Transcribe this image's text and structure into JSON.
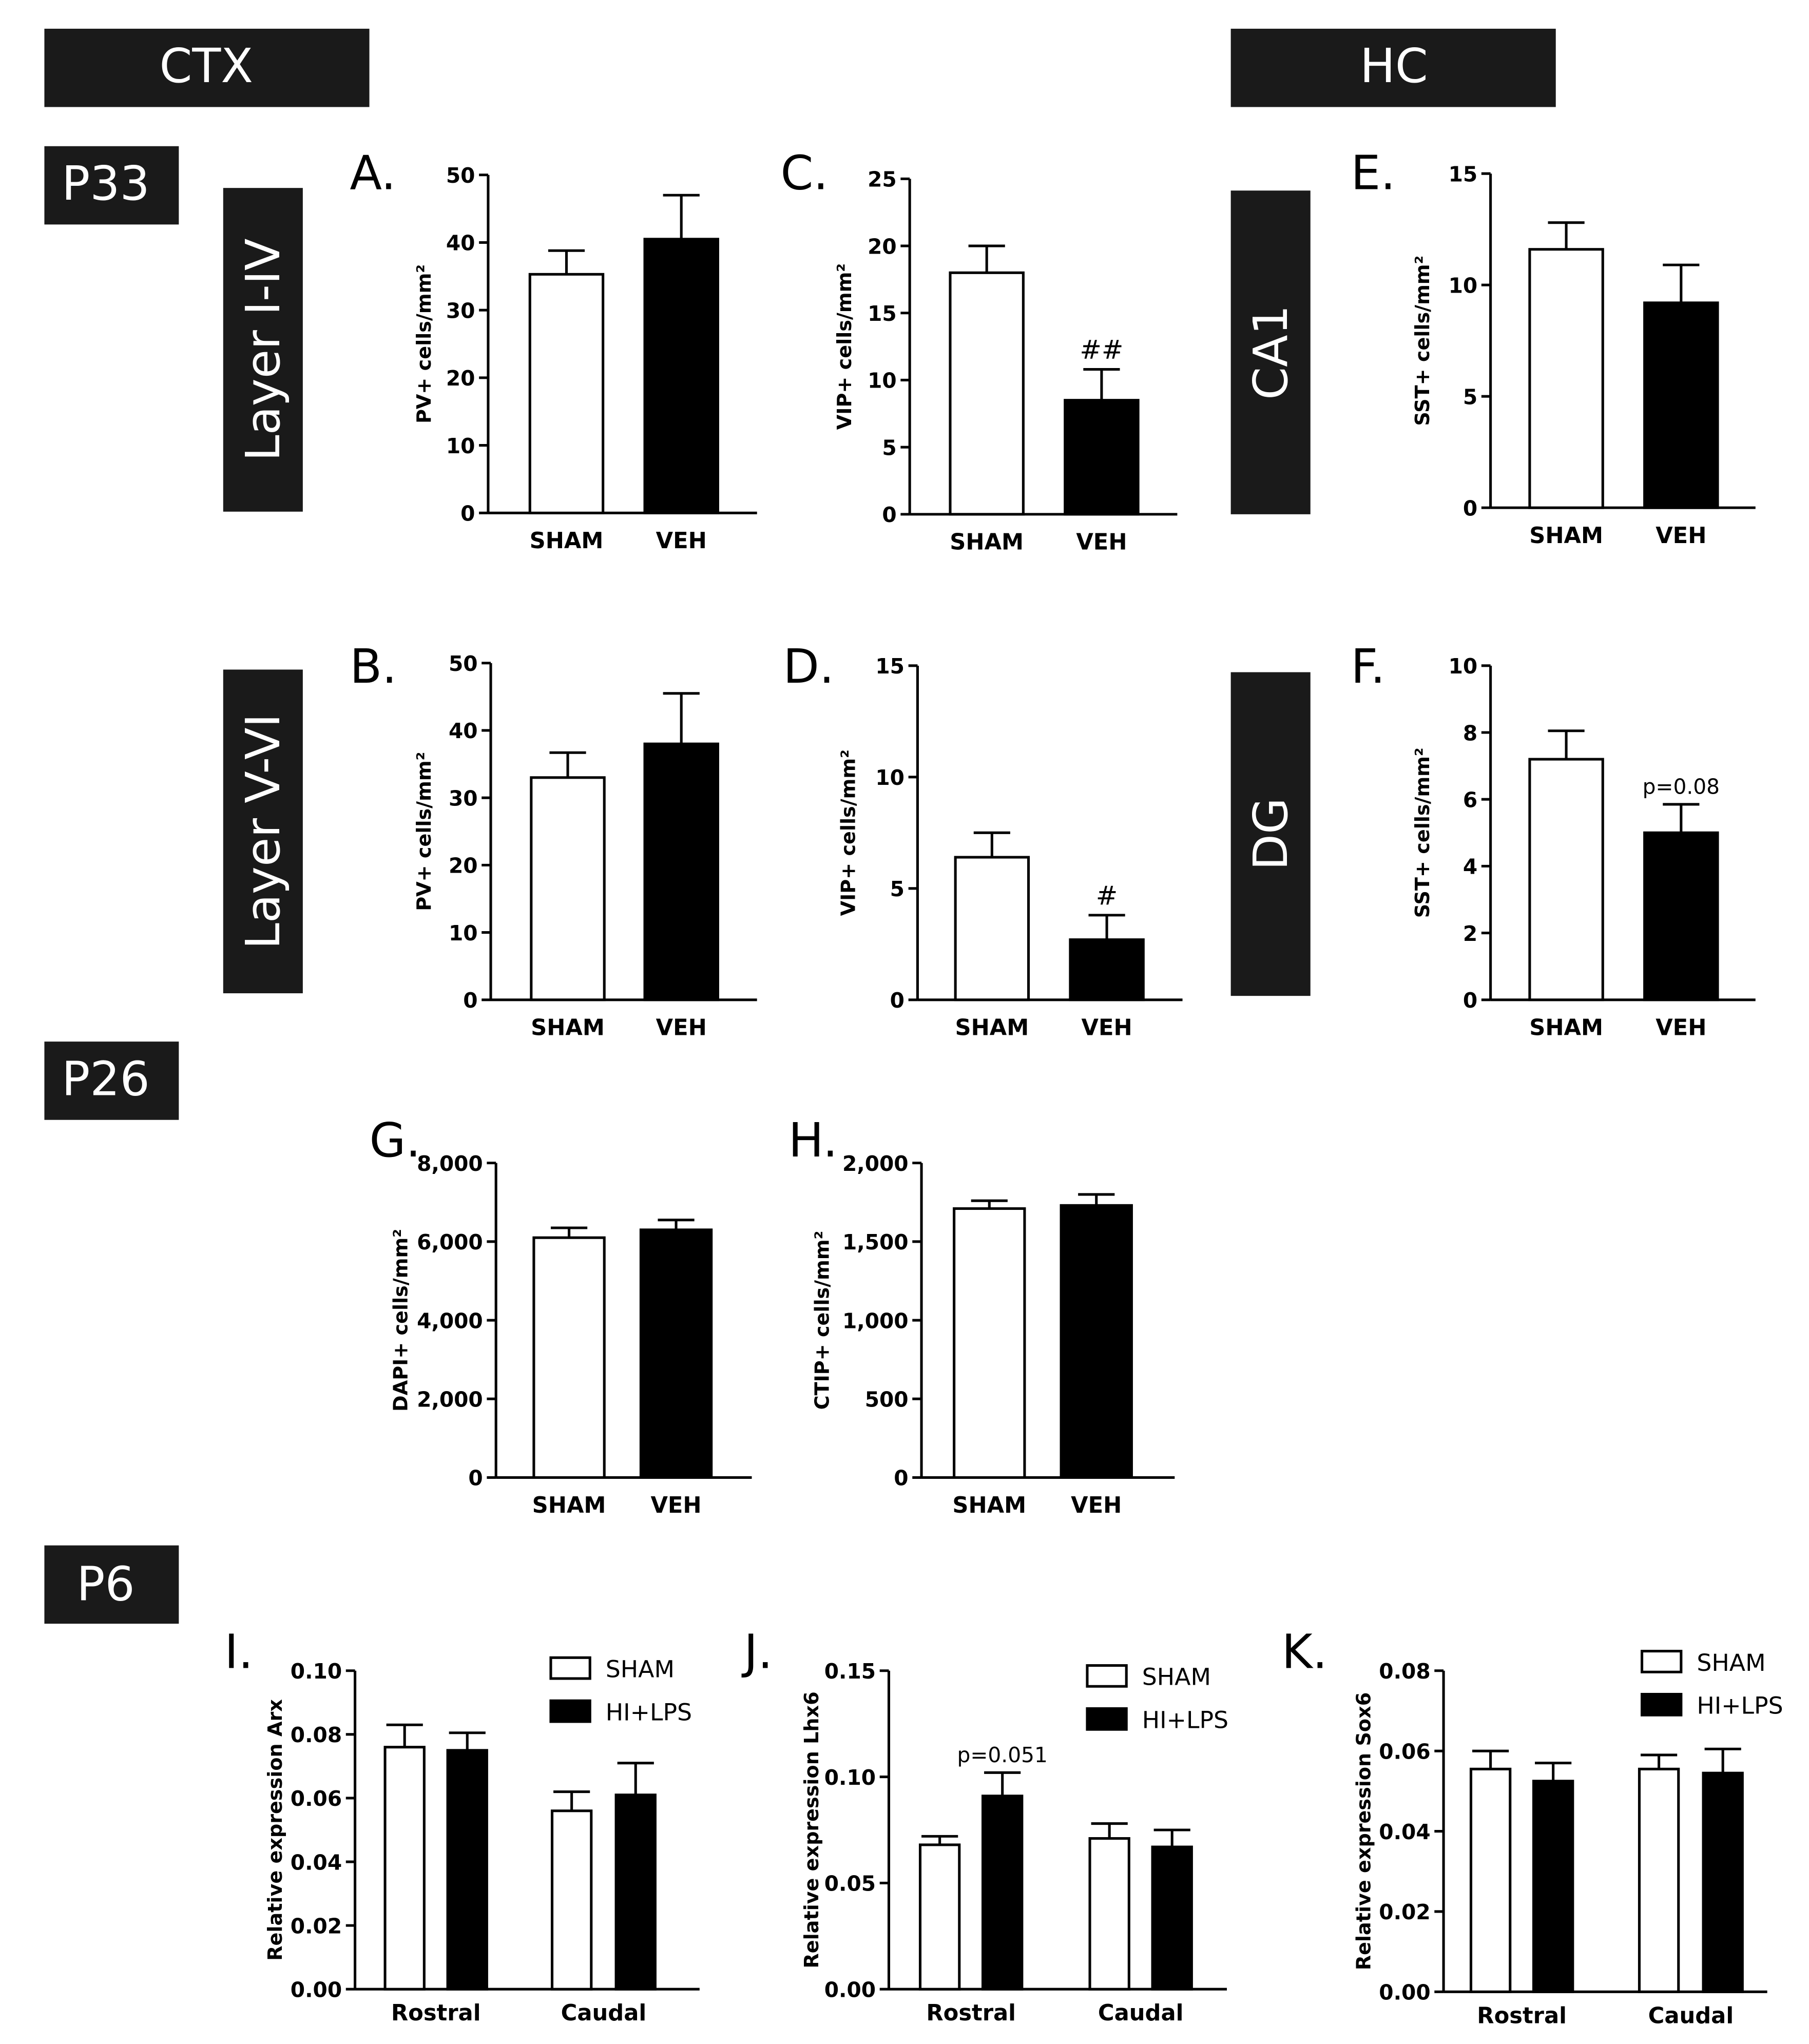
{
  "headers": {
    "ctx": "CTX",
    "hc": "HC",
    "p33": "P33",
    "p26": "P26",
    "p6": "P6",
    "layer1": "Layer I-IV",
    "layer2": "Layer V-VI",
    "ca1": "CA1",
    "dg": "DG"
  },
  "colors": {
    "open_bar": "#ffffff",
    "filled_bar": "#000000",
    "header_bg": "#1a1a1a"
  },
  "chart_data": [
    {
      "panel": "A.",
      "type": "bar",
      "ylabel": "PV+ cells/mm²",
      "categories": [
        "SHAM",
        "VEH"
      ],
      "values": [
        35.3,
        40.5
      ],
      "errors": [
        3.5,
        6.5
      ],
      "fills": [
        "open",
        "filled"
      ],
      "ylim": [
        0,
        50
      ],
      "yticks": [
        0,
        10,
        20,
        30,
        40,
        50
      ],
      "ytick_labels": [
        "0",
        "10",
        "20",
        "30",
        "40",
        "50"
      ],
      "annotations": [
        "",
        ""
      ]
    },
    {
      "panel": "C.",
      "type": "bar",
      "ylabel": "VIP+ cells/mm²",
      "categories": [
        "SHAM",
        "VEH"
      ],
      "values": [
        18.0,
        8.5
      ],
      "errors": [
        2.0,
        2.3
      ],
      "fills": [
        "open",
        "filled"
      ],
      "ylim": [
        0,
        25
      ],
      "yticks": [
        0,
        5,
        10,
        15,
        20,
        25
      ],
      "ytick_labels": [
        "0",
        "5",
        "10",
        "15",
        "20",
        "25"
      ],
      "annotations": [
        "",
        "##"
      ]
    },
    {
      "panel": "E.",
      "type": "bar",
      "ylabel": "SST+ cells/mm²",
      "categories": [
        "SHAM",
        "VEH"
      ],
      "values": [
        11.6,
        9.2
      ],
      "errors": [
        1.2,
        1.7
      ],
      "fills": [
        "open",
        "filled"
      ],
      "ylim": [
        0,
        15
      ],
      "yticks": [
        0,
        5,
        10,
        15
      ],
      "ytick_labels": [
        "0",
        "5",
        "10",
        "15"
      ],
      "annotations": [
        "",
        ""
      ]
    },
    {
      "panel": "B.",
      "type": "bar",
      "ylabel": "PV+ cells/mm²",
      "categories": [
        "SHAM",
        "VEH"
      ],
      "values": [
        33.0,
        38.0
      ],
      "errors": [
        3.7,
        7.5
      ],
      "fills": [
        "open",
        "filled"
      ],
      "ylim": [
        0,
        50
      ],
      "yticks": [
        0,
        10,
        20,
        30,
        40,
        50
      ],
      "ytick_labels": [
        "0",
        "10",
        "20",
        "30",
        "40",
        "50"
      ],
      "annotations": [
        "",
        ""
      ]
    },
    {
      "panel": "D.",
      "type": "bar",
      "ylabel": "VIP+ cells/mm²",
      "categories": [
        "SHAM",
        "VEH"
      ],
      "values": [
        6.4,
        2.7
      ],
      "errors": [
        1.1,
        1.1
      ],
      "fills": [
        "open",
        "filled"
      ],
      "ylim": [
        0,
        15
      ],
      "yticks": [
        0,
        5,
        10,
        15
      ],
      "ytick_labels": [
        "0",
        "5",
        "10",
        "15"
      ],
      "annotations": [
        "",
        "#"
      ]
    },
    {
      "panel": "F.",
      "type": "bar",
      "ylabel": "SST+ cells/mm²",
      "categories": [
        "SHAM",
        "VEH"
      ],
      "values": [
        7.2,
        5.0
      ],
      "errors": [
        0.85,
        0.85
      ],
      "fills": [
        "open",
        "filled"
      ],
      "ylim": [
        0,
        10
      ],
      "yticks": [
        0,
        2,
        4,
        6,
        8,
        10
      ],
      "ytick_labels": [
        "0",
        "2",
        "4",
        "6",
        "8",
        "10"
      ],
      "annotations": [
        "",
        "p=0.08"
      ]
    },
    {
      "panel": "G.",
      "type": "bar",
      "ylabel": "DAPI+ cells/mm²",
      "categories": [
        "SHAM",
        "VEH"
      ],
      "values": [
        6100,
        6300
      ],
      "errors": [
        250,
        250
      ],
      "fills": [
        "open",
        "filled"
      ],
      "ylim": [
        0,
        8000
      ],
      "yticks": [
        0,
        2000,
        4000,
        6000,
        8000
      ],
      "ytick_labels": [
        "0",
        "2,000",
        "4,000",
        "6,000",
        "8,000"
      ],
      "annotations": [
        "",
        ""
      ]
    },
    {
      "panel": "H.",
      "type": "bar",
      "ylabel": "CTIP+ cells/mm²",
      "categories": [
        "SHAM",
        "VEH"
      ],
      "values": [
        1710,
        1730
      ],
      "errors": [
        50,
        70
      ],
      "fills": [
        "open",
        "filled"
      ],
      "ylim": [
        0,
        2000
      ],
      "yticks": [
        0,
        500,
        1000,
        1500,
        2000
      ],
      "ytick_labels": [
        "0",
        "500",
        "1,000",
        "1,500",
        "2,000"
      ],
      "annotations": [
        "",
        ""
      ]
    },
    {
      "panel": "I.",
      "type": "bar",
      "ylabel": "Relative expression Arx",
      "categories": [
        "Rostral",
        "Caudal"
      ],
      "series": [
        {
          "name": "SHAM",
          "values": [
            0.076,
            0.056
          ],
          "errors": [
            0.007,
            0.006
          ]
        },
        {
          "name": "HI+LPS",
          "values": [
            0.075,
            0.061
          ],
          "errors": [
            0.0055,
            0.01
          ]
        }
      ],
      "annotations": [
        "",
        "",
        "",
        ""
      ],
      "ylim": [
        0,
        0.1
      ],
      "yticks": [
        0,
        0.02,
        0.04,
        0.06,
        0.08,
        0.1
      ],
      "ytick_labels": [
        "0.00",
        "0.02",
        "0.04",
        "0.06",
        "0.08",
        "0.10"
      ],
      "legend": "top-right"
    },
    {
      "panel": "J.",
      "type": "bar",
      "ylabel": "Relative expression Lhx6",
      "categories": [
        "Rostral",
        "Caudal"
      ],
      "series": [
        {
          "name": "SHAM",
          "values": [
            0.068,
            0.071
          ],
          "errors": [
            0.004,
            0.007
          ]
        },
        {
          "name": "HI+LPS",
          "values": [
            0.091,
            0.067
          ],
          "errors": [
            0.011,
            0.008
          ]
        }
      ],
      "annotations": [
        "",
        "p=0.051",
        "",
        ""
      ],
      "ylim": [
        0,
        0.15
      ],
      "yticks": [
        0,
        0.05,
        0.1,
        0.15
      ],
      "ytick_labels": [
        "0.00",
        "0.05",
        "0.10",
        "0.15"
      ],
      "legend": "top-right"
    },
    {
      "panel": "K.",
      "type": "bar",
      "ylabel": "Relative expression Sox6",
      "categories": [
        "Rostral",
        "Caudal"
      ],
      "series": [
        {
          "name": "SHAM",
          "values": [
            0.0555,
            0.0555
          ],
          "errors": [
            0.0045,
            0.0035
          ]
        },
        {
          "name": "HI+LPS",
          "values": [
            0.0525,
            0.0545
          ],
          "errors": [
            0.0045,
            0.006
          ]
        }
      ],
      "annotations": [
        "",
        "",
        "",
        ""
      ],
      "ylim": [
        0,
        0.08
      ],
      "yticks": [
        0,
        0.02,
        0.04,
        0.06,
        0.08
      ],
      "ytick_labels": [
        "0.00",
        "0.02",
        "0.04",
        "0.06",
        "0.08"
      ],
      "legend": "top-right"
    }
  ]
}
